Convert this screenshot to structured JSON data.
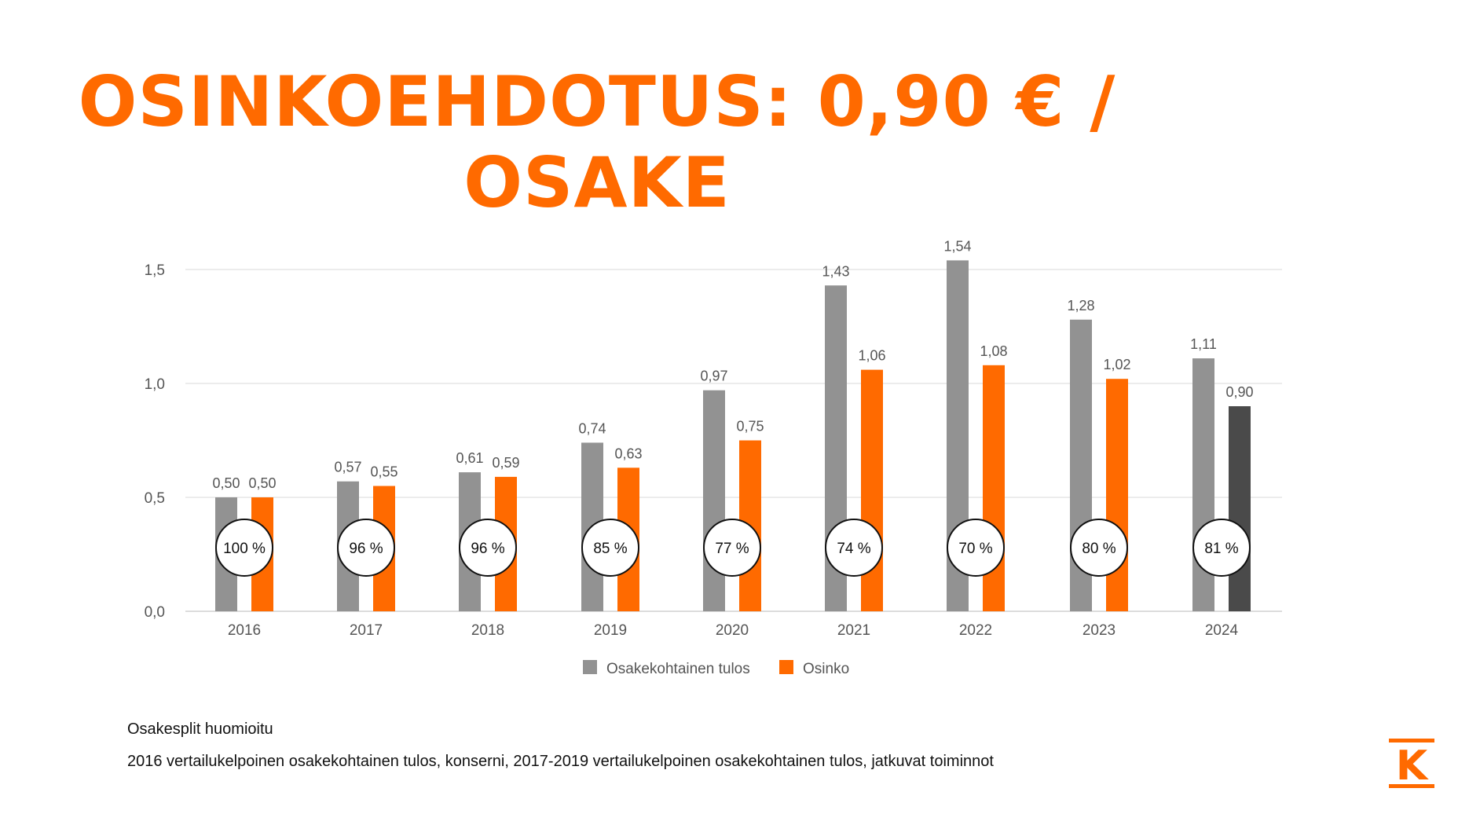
{
  "title": "OSINKOEHDOTUS: 0,90 € / OSAKE",
  "chart_data": {
    "type": "bar",
    "categories": [
      "2016",
      "2017",
      "2018",
      "2019",
      "2020",
      "2021",
      "2022",
      "2023",
      "2024"
    ],
    "series": [
      {
        "name": "Osakekohtainen tulos",
        "values": [
          0.5,
          0.57,
          0.61,
          0.74,
          0.97,
          1.43,
          1.54,
          1.28,
          1.11
        ],
        "color": "#929292"
      },
      {
        "name": "Osinko",
        "values": [
          0.5,
          0.55,
          0.59,
          0.63,
          0.75,
          1.06,
          1.08,
          1.02,
          0.9
        ],
        "color": "#ff6a00",
        "highlight_last_color": "#4a4a4a"
      }
    ],
    "value_labels": {
      "Osakekohtainen tulos": [
        "0,50",
        "0,57",
        "0,61",
        "0,74",
        "0,97",
        "1,43",
        "1,54",
        "1,28",
        "1,11"
      ],
      "Osinko": [
        "0,50",
        "0,55",
        "0,59",
        "0,63",
        "0,75",
        "1,06",
        "1,08",
        "1,02",
        "0,90"
      ]
    },
    "payout_ratios": [
      "100 %",
      "96 %",
      "96 %",
      "85 %",
      "77 %",
      "74 %",
      "70 %",
      "80 %",
      "81 %"
    ],
    "y_ticks": [
      0,
      0.5,
      1.0,
      1.5
    ],
    "y_tick_labels": [
      "0,0",
      "0,5",
      "1,0",
      "1,5"
    ],
    "ylim": [
      0,
      1.5
    ],
    "grid": true,
    "legend": "bottom-center",
    "title": "",
    "xlabel": "",
    "ylabel": ""
  },
  "notes": {
    "line1": "Osakesplit huomioitu",
    "line2": "2016 vertailukelpoinen osakekohtainen tulos, konserni, 2017-2019 vertailukelpoinen osakekohtainen tulos, jatkuvat toiminnot"
  },
  "logo": {
    "letter": "K",
    "color": "#ff6a00"
  }
}
